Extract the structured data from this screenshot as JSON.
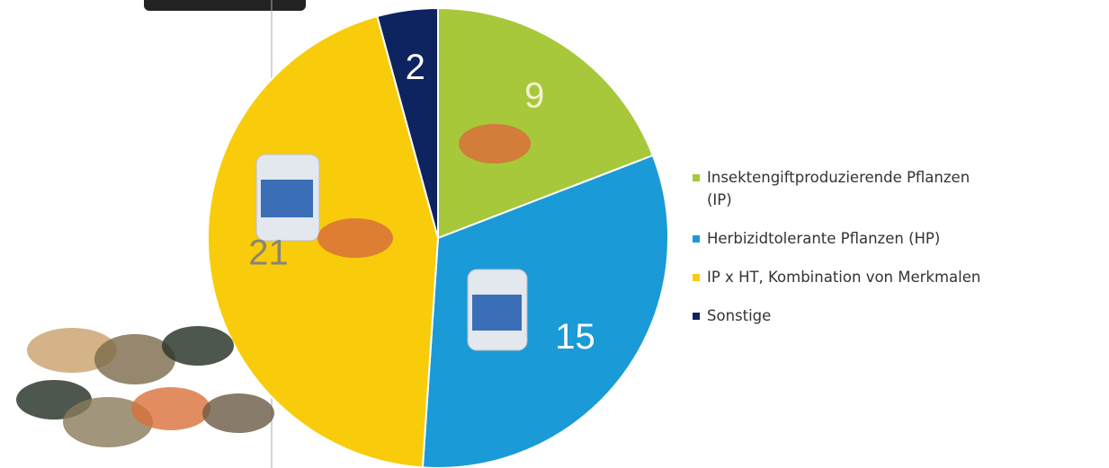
{
  "chart_data": {
    "type": "pie",
    "categories": [
      "Insektengiftproduzierende Pflanzen (IP)",
      "Herbizidtolerante Pflanzen (HP)",
      "IP x HT, Kombination von Merkmalen",
      "Sonstige"
    ],
    "values": [
      9,
      15,
      21,
      2
    ],
    "colors": [
      "#a6c83a",
      "#1a9ad7",
      "#f8cc0b",
      "#0e2461"
    ],
    "label_colors": [
      "#f4f0d0",
      "#ffffff",
      "#8a8478",
      "#ffffff"
    ]
  }
}
